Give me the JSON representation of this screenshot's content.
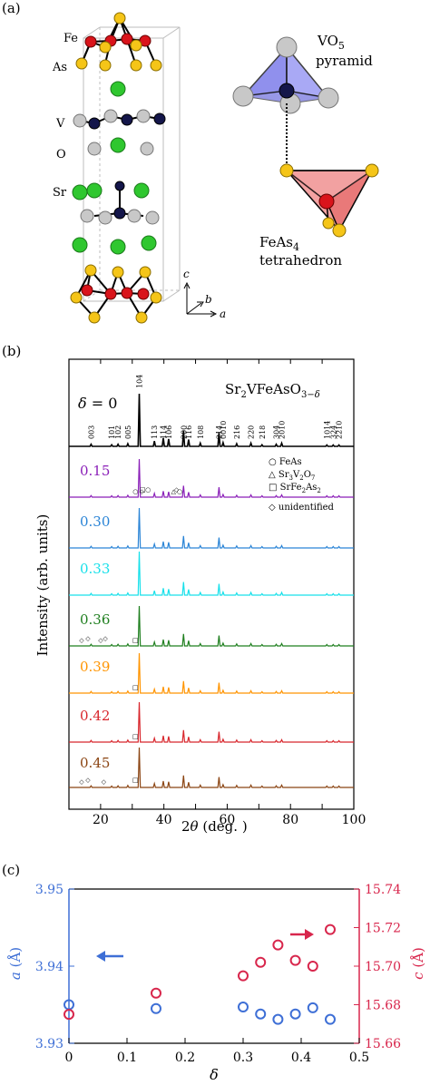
{
  "panel_a": {
    "label": "(a)",
    "atoms": [
      {
        "label": "Fe",
        "color": "#d9141b"
      },
      {
        "label": "As",
        "color": "#f5c518"
      },
      {
        "label": "V",
        "color": "#14164a"
      },
      {
        "label": "O",
        "color": "#c8c8c8"
      },
      {
        "label": "Sr",
        "color": "#2fc72f"
      }
    ],
    "vo5_label_1": "VO",
    "vo5_sub": "5",
    "vo5_label_2": "pyramid",
    "feas_label_1": "FeAs",
    "feas_sub": "4",
    "feas_label_2": "tetrahedron",
    "axes": {
      "c": "c",
      "b": "b",
      "a": "a"
    }
  },
  "chart_data": [
    {
      "type": "line",
      "panel_label": "(b)",
      "title": "Sr2VFeAsO3−δ",
      "xlabel": "2θ (deg.)",
      "ylabel": "Intensity (arb. units)",
      "xlim": [
        10,
        100
      ],
      "xticks": [
        20,
        40,
        60,
        80,
        100
      ],
      "delta_label": "δ = 0",
      "reflections": [
        {
          "hkl": "003",
          "x": 17.0
        },
        {
          "hkl": "101",
          "x": 23.5
        },
        {
          "hkl": "102",
          "x": 25.5
        },
        {
          "hkl": "005",
          "x": 28.6
        },
        {
          "hkl": "104",
          "x": 32.2
        },
        {
          "hkl": "113",
          "x": 37.0
        },
        {
          "hkl": "114",
          "x": 39.8
        },
        {
          "hkl": "106",
          "x": 41.5
        },
        {
          "hkl": "200",
          "x": 46.2
        },
        {
          "hkl": "116",
          "x": 47.8
        },
        {
          "hkl": "108",
          "x": 51.5
        },
        {
          "hkl": "214",
          "x": 57.4
        },
        {
          "hkl": "0010",
          "x": 58.7
        },
        {
          "hkl": "216",
          "x": 63.0
        },
        {
          "hkl": "220",
          "x": 67.5
        },
        {
          "hkl": "218",
          "x": 71.0
        },
        {
          "hkl": "304",
          "x": 75.5
        },
        {
          "hkl": "2010",
          "x": 77.2
        },
        {
          "hkl": "1014",
          "x": 91.5
        },
        {
          "hkl": "324",
          "x": 93.5
        },
        {
          "hkl": "2210",
          "x": 95.3
        }
      ],
      "legend": [
        {
          "symbol": "○",
          "label_1": "FeAs",
          "label_sub": "",
          "label_2": ""
        },
        {
          "symbol": "△",
          "label_1": "Sr",
          "label_sub": "3",
          "label_2": "V",
          "label_sub2": "2",
          "label_3": "O",
          "label_sub3": "7"
        },
        {
          "symbol": "□",
          "label_1": "SrFe",
          "label_sub": "2",
          "label_2": "As",
          "label_sub2": "2",
          "label_3": ""
        },
        {
          "symbol": "◇",
          "label_1": "unidentified",
          "label_sub": "",
          "label_2": ""
        }
      ],
      "peaks": [
        {
          "x": 17.0,
          "h": 0.04
        },
        {
          "x": 23.5,
          "h": 0.03
        },
        {
          "x": 25.5,
          "h": 0.04
        },
        {
          "x": 28.6,
          "h": 0.05
        },
        {
          "x": 32.2,
          "h": 1.0
        },
        {
          "x": 37.0,
          "h": 0.1
        },
        {
          "x": 39.8,
          "h": 0.16
        },
        {
          "x": 41.5,
          "h": 0.14
        },
        {
          "x": 46.2,
          "h": 0.3
        },
        {
          "x": 47.8,
          "h": 0.13
        },
        {
          "x": 51.5,
          "h": 0.06
        },
        {
          "x": 57.4,
          "h": 0.26
        },
        {
          "x": 58.7,
          "h": 0.07
        },
        {
          "x": 63.0,
          "h": 0.05
        },
        {
          "x": 67.5,
          "h": 0.06
        },
        {
          "x": 71.0,
          "h": 0.03
        },
        {
          "x": 75.5,
          "h": 0.04
        },
        {
          "x": 77.2,
          "h": 0.06
        },
        {
          "x": 91.5,
          "h": 0.02
        },
        {
          "x": 93.5,
          "h": 0.02
        },
        {
          "x": 95.3,
          "h": 0.02
        }
      ],
      "series": [
        {
          "name": "0",
          "color": "#000000",
          "impurity_markers": []
        },
        {
          "name": "0.15",
          "color": "#8a1fb8",
          "impurity_markers": [
            {
              "symbol": "○",
              "x": 31.0
            },
            {
              "symbol": "□",
              "x": 33.3
            },
            {
              "symbol": "◇",
              "x": 33.0
            },
            {
              "symbol": "○",
              "x": 35.0
            },
            {
              "symbol": "△",
              "x": 43.0
            },
            {
              "symbol": "◇",
              "x": 44.0
            },
            {
              "symbol": "○",
              "x": 45.0
            }
          ]
        },
        {
          "name": "0.30",
          "color": "#2a84d6",
          "impurity_markers": []
        },
        {
          "name": "0.33",
          "color": "#17e0ea",
          "impurity_markers": []
        },
        {
          "name": "0.36",
          "color": "#1f7f1f",
          "impurity_markers": [
            {
              "symbol": "◇",
              "x": 14.0
            },
            {
              "symbol": "◇",
              "x": 16.0
            },
            {
              "symbol": "◇",
              "x": 20.0
            },
            {
              "symbol": "◇",
              "x": 21.5
            },
            {
              "symbol": "□",
              "x": 31.0
            }
          ]
        },
        {
          "name": "0.39",
          "color": "#ff9400",
          "impurity_markers": [
            {
              "symbol": "□",
              "x": 31.0
            }
          ]
        },
        {
          "name": "0.42",
          "color": "#d8262c",
          "impurity_markers": [
            {
              "symbol": "□",
              "x": 31.0
            }
          ]
        },
        {
          "name": "0.45",
          "color": "#8b4513",
          "impurity_markers": [
            {
              "symbol": "◇",
              "x": 14.0
            },
            {
              "symbol": "◇",
              "x": 16.0
            },
            {
              "symbol": "◇",
              "x": 21.0
            },
            {
              "symbol": "□",
              "x": 31.0
            }
          ]
        }
      ]
    },
    {
      "type": "scatter",
      "panel_label": "(c)",
      "xlabel": "δ",
      "xlim": [
        0,
        0.5
      ],
      "xticks": [
        0,
        0.1,
        0.2,
        0.3,
        0.4,
        0.5
      ],
      "xtick_labels": [
        "0",
        "0.1",
        "0.2",
        "0.3",
        "0.4",
        "0.5"
      ],
      "left_axis": {
        "label_var": "a",
        "label_unit": "(Å)",
        "ylim": [
          3.93,
          3.95
        ],
        "ticks": [
          "3.93",
          "3.94",
          "3.95"
        ],
        "color": "#3e6fd6"
      },
      "right_axis": {
        "label_var": "c",
        "label_unit": "(Å)",
        "ylim": [
          15.66,
          15.74
        ],
        "ticks": [
          "15.66",
          "15.68",
          "15.70",
          "15.72",
          "15.74"
        ],
        "color": "#d8264c"
      },
      "series": [
        {
          "axis": "left",
          "color": "#3e6fd6",
          "x": [
            0,
            0.15,
            0.3,
            0.33,
            0.36,
            0.39,
            0.42,
            0.45
          ],
          "y": [
            3.935,
            3.9345,
            3.9347,
            3.9338,
            3.9331,
            3.9338,
            3.9346,
            3.9331
          ]
        },
        {
          "axis": "right",
          "color": "#d8264c",
          "x": [
            0,
            0.15,
            0.3,
            0.33,
            0.36,
            0.39,
            0.42,
            0.45
          ],
          "y": [
            15.675,
            15.686,
            15.695,
            15.702,
            15.711,
            15.703,
            15.7,
            15.719
          ]
        }
      ]
    }
  ]
}
